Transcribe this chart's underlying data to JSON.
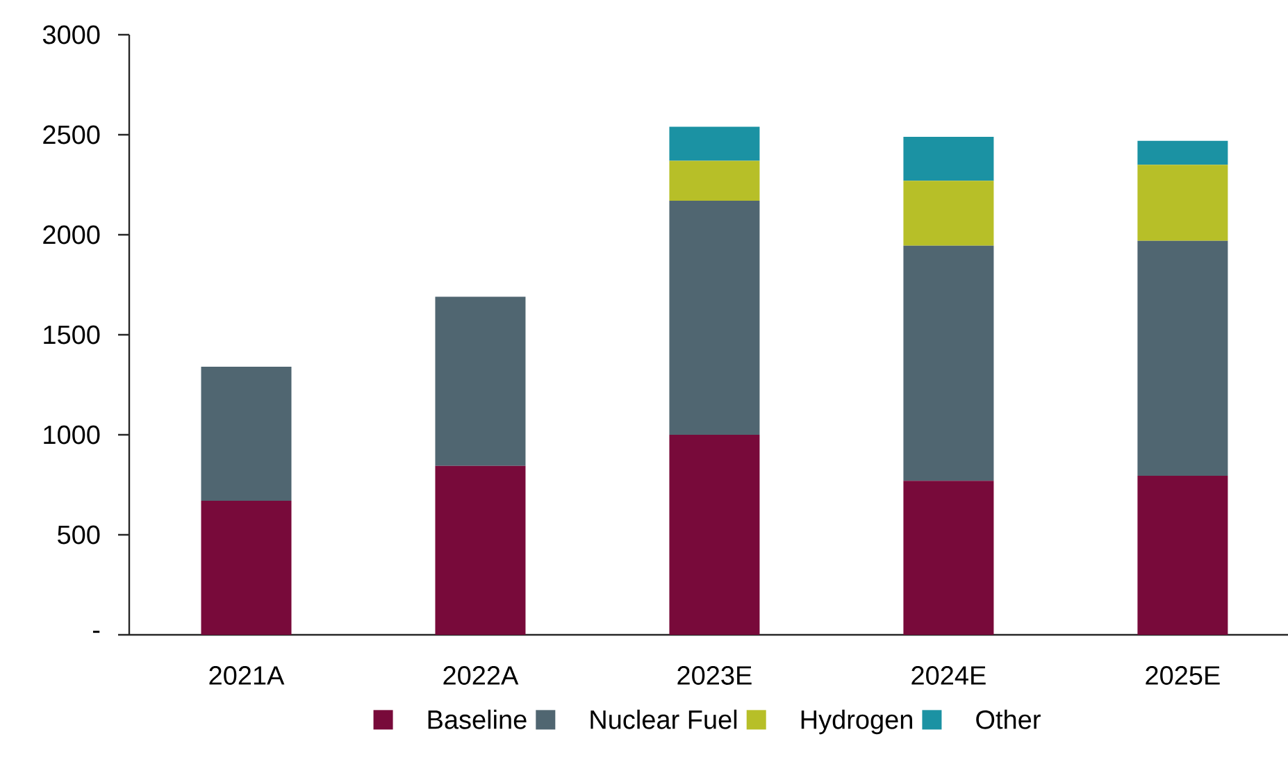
{
  "chart_data": {
    "type": "bar",
    "stacked": true,
    "categories": [
      "2021A",
      "2022A",
      "2023E",
      "2024E",
      "2025E"
    ],
    "series": [
      {
        "name": "Baseline",
        "color": "#780a3a",
        "values": [
          670,
          845,
          1000,
          770,
          795
        ]
      },
      {
        "name": "Nuclear Fuel",
        "color": "#506671",
        "values": [
          670,
          845,
          1170,
          1175,
          1175
        ]
      },
      {
        "name": "Hydrogen",
        "color": "#b7bf28",
        "values": [
          null,
          null,
          200,
          325,
          380
        ]
      },
      {
        "name": "Other",
        "color": "#1b92a3",
        "values": [
          null,
          null,
          170,
          220,
          120
        ]
      }
    ],
    "ylim": [
      0,
      3000
    ],
    "yticks": [
      {
        "value": 0,
        "label": "-"
      },
      500,
      1000,
      1500,
      2000,
      2500,
      3000
    ],
    "grid": false,
    "legend": "bottom"
  }
}
